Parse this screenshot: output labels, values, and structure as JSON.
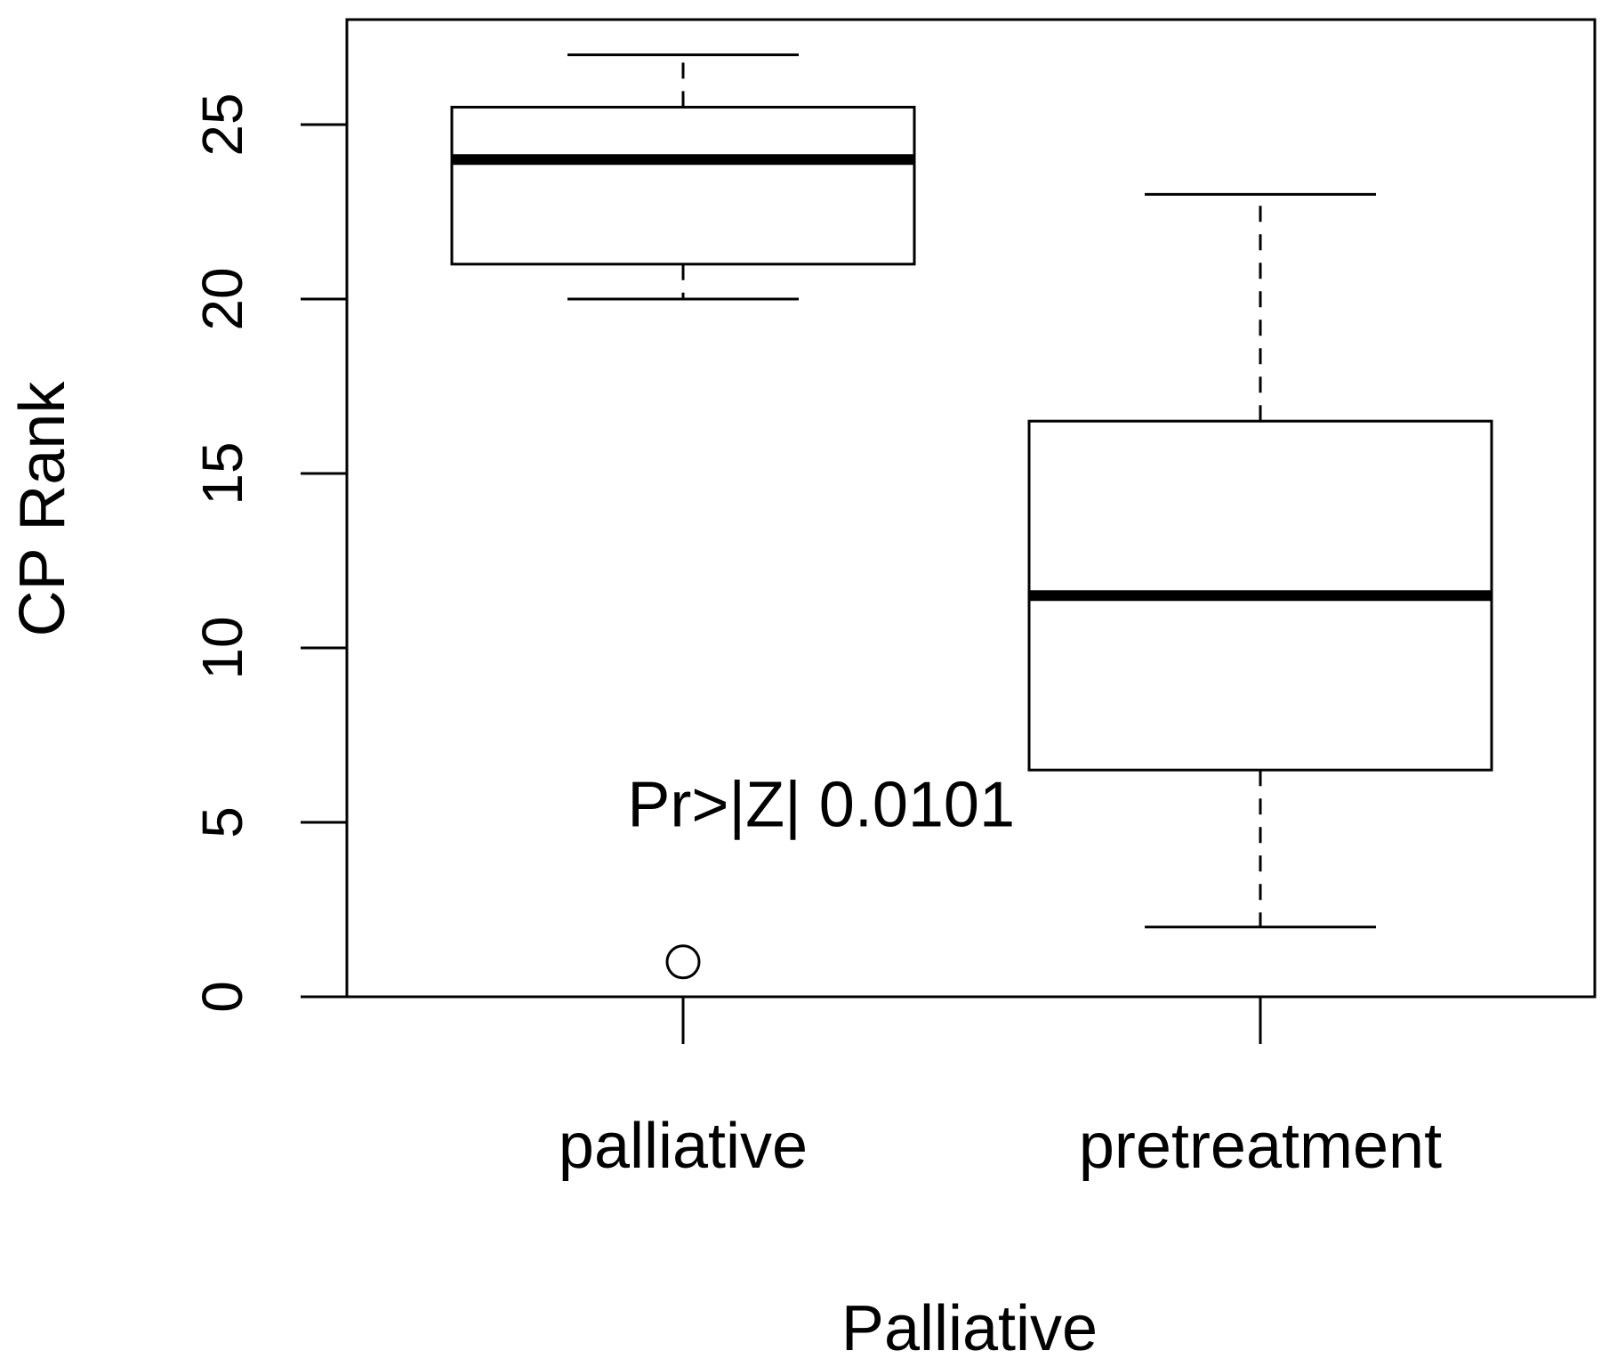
{
  "chart_data": {
    "type": "box",
    "xlabel": "Palliative",
    "ylabel": "CP Rank",
    "ylim": [
      0,
      28
    ],
    "yticks": [
      0,
      5,
      10,
      15,
      20,
      25
    ],
    "ytick_labels": [
      "0",
      "5",
      "10",
      "15",
      "20",
      "25"
    ],
    "categories": [
      "palliative",
      "pretreatment"
    ],
    "boxes": [
      {
        "category": "palliative",
        "whisker_low": 20,
        "q1": 21,
        "median": 24,
        "q3": 25.5,
        "whisker_high": 27,
        "outliers": [
          1
        ]
      },
      {
        "category": "pretreatment",
        "whisker_low": 2,
        "q1": 6.5,
        "median": 11.5,
        "q3": 16.5,
        "whisker_high": 23,
        "outliers": []
      }
    ],
    "annotation": {
      "text": "Pr>|Z| 0.0101",
      "x": 1.15,
      "y": 5.5
    },
    "grid": false,
    "legend": "none"
  }
}
